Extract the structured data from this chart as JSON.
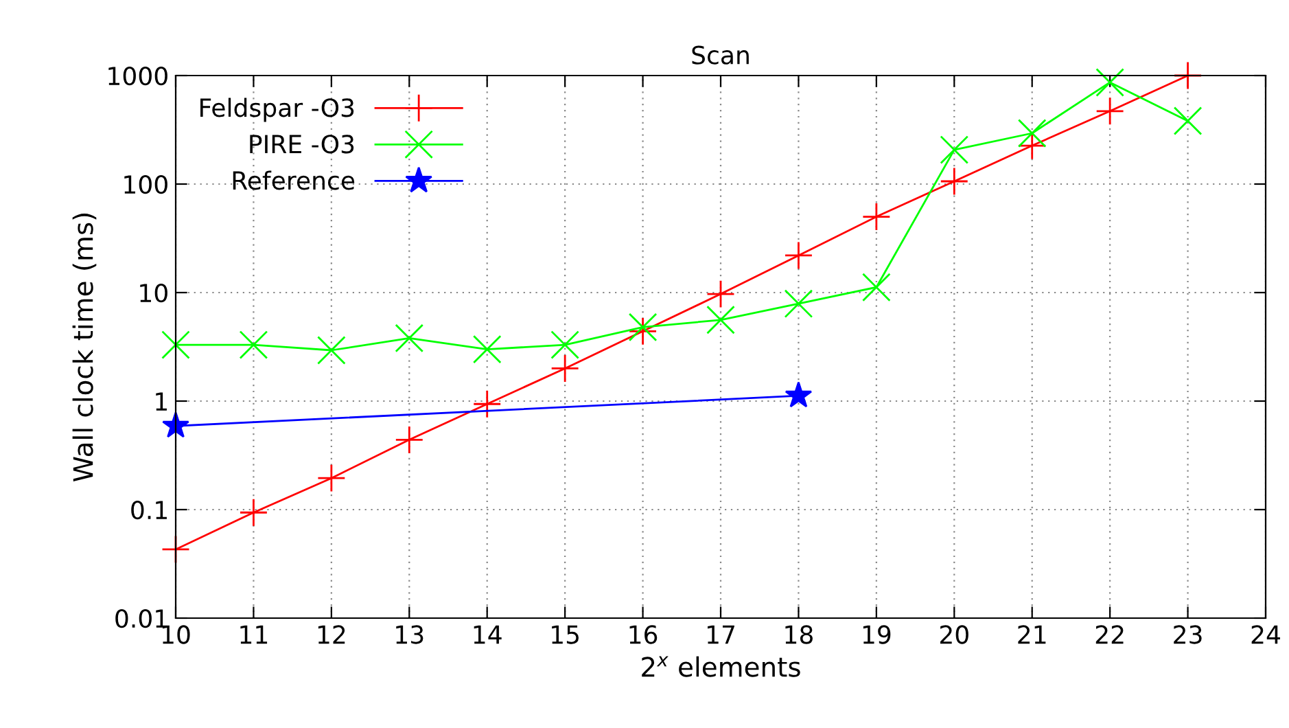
{
  "chart_data": {
    "type": "line",
    "title": "Scan",
    "xlabel": "2$^{x}$ elements",
    "ylabel": "Wall clock time (ms)",
    "log": "y",
    "grid": true,
    "legend": "top left",
    "xlim": [
      10,
      24
    ],
    "xticks": [
      10,
      11,
      12,
      13,
      14,
      15,
      16,
      17,
      18,
      19,
      20,
      21,
      22,
      23,
      24
    ],
    "ylim": [
      0.01,
      1000
    ],
    "yticks": [
      0.01,
      0.1,
      1,
      10,
      100,
      1000
    ],
    "series": [
      {
        "name": "Feldspar -O3",
        "color": "#ff0000",
        "marker": "plus",
        "x": [
          10,
          11,
          12,
          13,
          14,
          15,
          16,
          17,
          18,
          19,
          20,
          21,
          22,
          23
        ],
        "values": [
          0.043,
          0.094,
          0.195,
          0.44,
          0.94,
          2.0,
          4.4,
          9.7,
          22,
          50,
          106,
          226,
          470,
          1000
        ]
      },
      {
        "name": "PIRE -O3",
        "color": "#00ff00",
        "marker": "cross",
        "x": [
          10,
          11,
          12,
          13,
          14,
          15,
          16,
          17,
          18,
          19,
          20,
          21,
          22,
          23
        ],
        "values": [
          3.3,
          3.3,
          2.94,
          3.8,
          3.0,
          3.3,
          4.8,
          5.6,
          7.9,
          11.2,
          207,
          294,
          865,
          382
        ]
      },
      {
        "name": "Reference",
        "color": "#0000ff",
        "marker": "star",
        "x": [
          10,
          18
        ],
        "values": [
          0.59,
          1.12
        ]
      }
    ]
  }
}
